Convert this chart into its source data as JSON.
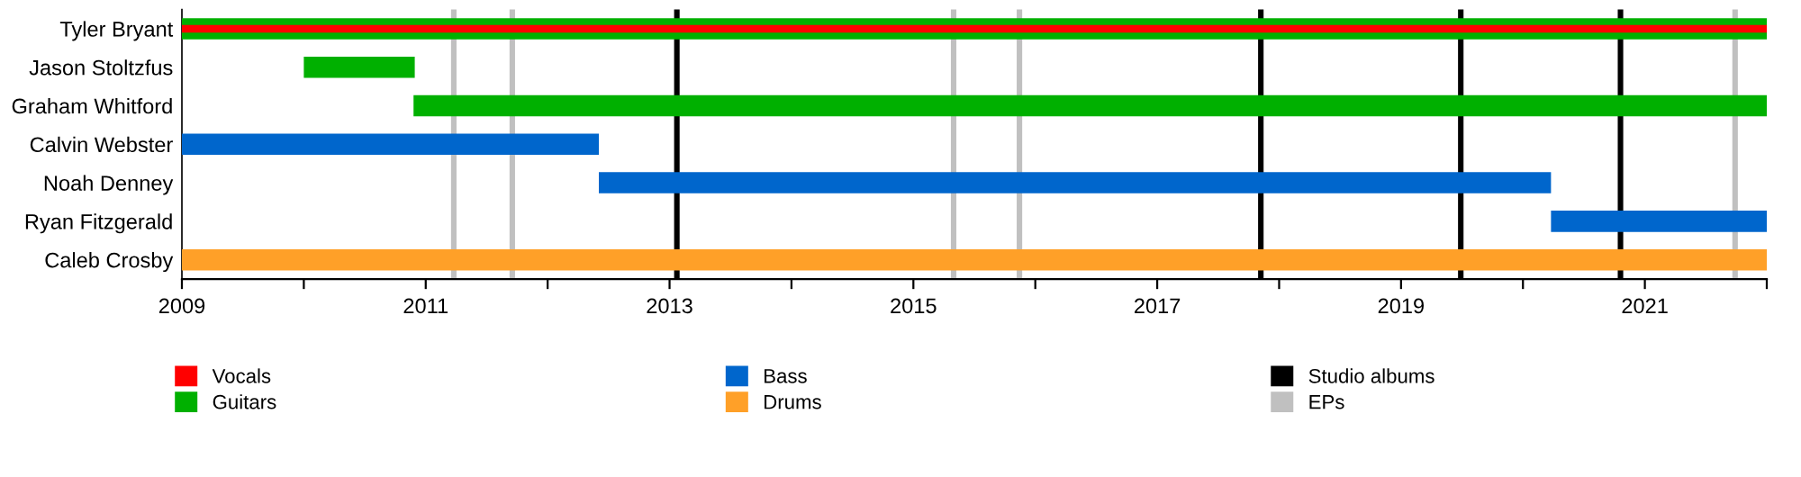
{
  "chart_data": {
    "type": "bar",
    "orientation": "horizontal",
    "categories": [
      "Tyler Bryant",
      "Jason Stoltzfus",
      "Graham Whitford",
      "Calvin Webster",
      "Noah Denney",
      "Ryan Fitzgerald",
      "Caleb Crosby"
    ],
    "series": [
      {
        "name": "Vocals",
        "color": "#ff0000",
        "values": [
          13,
          null,
          null,
          null,
          null,
          null,
          null
        ],
        "base": [
          2009,
          null,
          null,
          null,
          null,
          null,
          null
        ]
      },
      {
        "name": "Guitars",
        "color": "#00b000",
        "values": [
          13,
          0.91,
          11.1,
          null,
          null,
          null,
          null
        ],
        "base": [
          2009,
          2010,
          2010.9,
          null,
          null,
          null,
          null
        ]
      },
      {
        "name": "Bass",
        "color": "#0066cc",
        "values": [
          null,
          null,
          null,
          3.42,
          7.81,
          1.77,
          null
        ],
        "base": [
          null,
          null,
          null,
          2009,
          2012.42,
          2020.23,
          null
        ]
      },
      {
        "name": "Drums",
        "color": "#ffa028",
        "values": [
          null,
          null,
          null,
          null,
          null,
          null,
          13
        ],
        "base": [
          null,
          null,
          null,
          null,
          null,
          null,
          2009
        ]
      }
    ],
    "xlim": [
      2009,
      2022
    ],
    "xticks": [
      2009,
      {
        "value": 2010,
        "label": null
      },
      2011,
      {
        "value": 2012,
        "label": null
      },
      2013,
      {
        "value": 2014,
        "label": null
      },
      2015,
      {
        "value": 2016,
        "label": null
      },
      2017,
      {
        "value": 2018,
        "label": null
      },
      2019,
      {
        "value": 2020,
        "label": null
      },
      2021,
      {
        "value": 2022,
        "label": null
      }
    ],
    "ref_lines": [
      {
        "axis": "x",
        "value": 2013.06,
        "label": "Studio albums",
        "color": "#000000"
      },
      {
        "axis": "x",
        "value": 2017.85,
        "color": "#000000"
      },
      {
        "axis": "x",
        "value": 2019.49,
        "color": "#000000"
      },
      {
        "axis": "x",
        "value": 2020.8,
        "color": "#000000"
      },
      {
        "axis": "x",
        "value": 2011.23,
        "label": "EPs",
        "color": "#c0c0c0"
      },
      {
        "axis": "x",
        "value": 2011.71,
        "color": "#c0c0c0"
      },
      {
        "axis": "x",
        "value": 2015.33,
        "color": "#c0c0c0"
      },
      {
        "axis": "x",
        "value": 2015.87,
        "color": "#c0c0c0"
      },
      {
        "axis": "x",
        "value": 2021.74,
        "color": "#c0c0c0"
      }
    ],
    "legend": "bottom",
    "grid": false
  }
}
